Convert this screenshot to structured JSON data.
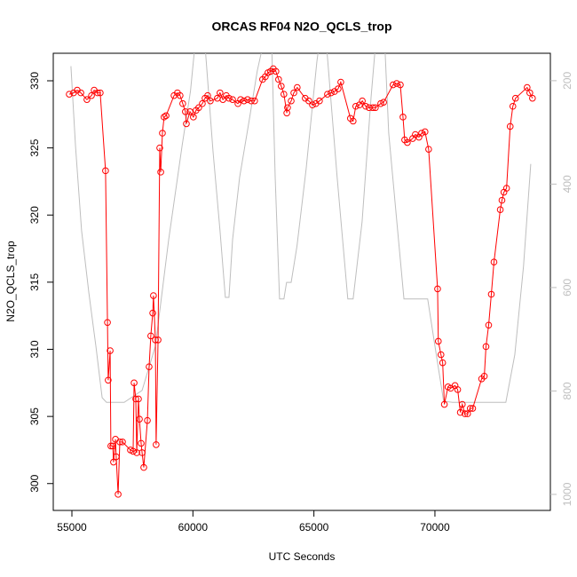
{
  "chart_data": {
    "type": "line",
    "title": "ORCAS RF04 N2O_QCLS_trop",
    "x_label": "UTC Seconds",
    "y_label": "N2O_QCLS_trop",
    "xlim": [
      54230,
      74770
    ],
    "xticks": [
      55000,
      60000,
      65000,
      70000
    ],
    "ylim": [
      298.0,
      332.05
    ],
    "yticks": [
      300,
      305,
      310,
      315,
      320,
      325,
      330
    ],
    "y2lim": [
      1031,
      147
    ],
    "y2ticks": [
      200,
      400,
      600,
      800,
      1000
    ],
    "y2color": "#bebebe",
    "series": [
      {
        "color": "#ff0000",
        "markers": true,
        "x": [
          54890,
          55070,
          55220,
          55370,
          55620,
          55810,
          55920,
          56060,
          56170,
          56390,
          56470,
          56500,
          56580,
          56610,
          56690,
          56720,
          56800,
          56830,
          56910,
          56980,
          57090,
          57420,
          57530,
          57570,
          57640,
          57680,
          57750,
          57790,
          57860,
          57900,
          57970,
          58120,
          58190,
          58260,
          58340,
          58370,
          58450,
          58480,
          58560,
          58630,
          58670,
          58740,
          58810,
          58890,
          59220,
          59360,
          59470,
          59580,
          59690,
          59730,
          59880,
          60020,
          60130,
          60240,
          60390,
          60500,
          60610,
          60720,
          61010,
          61120,
          61240,
          61380,
          61490,
          61640,
          61860,
          61970,
          62110,
          62260,
          62410,
          62550,
          62880,
          62990,
          63100,
          63210,
          63320,
          63430,
          63540,
          63650,
          63760,
          63880,
          63910,
          64060,
          64170,
          64310,
          64640,
          64790,
          64940,
          65080,
          65230,
          65560,
          65710,
          65850,
          66000,
          66110,
          66510,
          66620,
          66730,
          66880,
          67000,
          67140,
          67280,
          67430,
          67540,
          67760,
          67880,
          68270,
          68420,
          68570,
          68680,
          68750,
          68860,
          69080,
          69190,
          69340,
          69450,
          69590,
          69740,
          70110,
          70140,
          70250,
          70320,
          70390,
          70540,
          70650,
          70830,
          70940,
          71050,
          71130,
          71240,
          71350,
          71460,
          71560,
          71930,
          72040,
          72110,
          72220,
          72330,
          72440,
          72700,
          72770,
          72850,
          72960,
          73110,
          73220,
          73330,
          73810,
          73920,
          74030
        ],
        "values": [
          329.0,
          329.1,
          329.3,
          329.1,
          328.6,
          328.9,
          329.3,
          329.1,
          329.1,
          323.3,
          312.0,
          307.7,
          309.9,
          302.8,
          302.8,
          301.6,
          303.3,
          302.0,
          299.2,
          303.1,
          303.1,
          302.5,
          302.4,
          307.5,
          306.3,
          302.3,
          306.3,
          304.8,
          303.0,
          302.3,
          301.2,
          304.7,
          308.7,
          311.0,
          312.7,
          314.0,
          310.7,
          302.9,
          310.7,
          325.0,
          323.2,
          326.1,
          327.3,
          327.4,
          328.9,
          329.1,
          328.9,
          328.3,
          327.7,
          326.8,
          327.7,
          327.3,
          327.8,
          328.0,
          328.3,
          328.7,
          328.9,
          328.5,
          328.7,
          329.1,
          328.6,
          328.9,
          328.7,
          328.6,
          328.3,
          328.6,
          328.5,
          328.6,
          328.5,
          328.5,
          330.1,
          330.3,
          330.6,
          330.7,
          330.9,
          330.7,
          330.1,
          329.6,
          329.0,
          327.6,
          328.0,
          328.5,
          329.1,
          329.5,
          328.7,
          328.5,
          328.2,
          328.3,
          328.5,
          329.0,
          329.1,
          329.2,
          329.4,
          329.9,
          327.2,
          327.0,
          328.1,
          328.2,
          328.5,
          328.1,
          328.0,
          328.0,
          328.0,
          328.3,
          328.4,
          329.7,
          329.8,
          329.7,
          327.3,
          325.6,
          325.4,
          325.7,
          326.0,
          325.8,
          326.1,
          326.2,
          324.9,
          314.5,
          310.6,
          309.6,
          309.0,
          305.9,
          307.2,
          307.1,
          307.3,
          307.0,
          305.3,
          305.9,
          305.2,
          305.2,
          305.6,
          305.6,
          307.8,
          308.0,
          310.2,
          311.8,
          314.1,
          316.5,
          320.4,
          321.1,
          321.7,
          322.0,
          326.6,
          328.1,
          328.7,
          329.5,
          329.1,
          328.7
        ]
      },
      {
        "color": "#bebebe",
        "axis": "y2",
        "markers": false,
        "x": [
          54960,
          55150,
          55400,
          55700,
          55990,
          56250,
          56430,
          57160,
          57900,
          58450,
          59000,
          59550,
          59900,
          60150,
          60450,
          60830,
          61120,
          61340,
          61490,
          61640,
          61930,
          62300,
          62660,
          62900,
          63050,
          63250,
          63400,
          63580,
          63760,
          63870,
          64060,
          64300,
          64680,
          65120,
          65300,
          65500,
          65960,
          66400,
          66620,
          66990,
          67360,
          67600,
          67900,
          68090,
          68460,
          68720,
          69700,
          70000,
          70360,
          70730,
          72930,
          73300,
          73660,
          73960
        ],
        "values": [
          172,
          327,
          490,
          610,
          713,
          813,
          822,
          822,
          799,
          713,
          507,
          327,
          220,
          100,
          100,
          336,
          490,
          619,
          619,
          507,
          387,
          284,
          181,
          130,
          100,
          120,
          387,
          622,
          622,
          590,
          590,
          520,
          370,
          164,
          100,
          120,
          387,
          622,
          622,
          473,
          233,
          100,
          100,
          301,
          490,
          622,
          622,
          713,
          820,
          822,
          822,
          730,
          559,
          361
        ]
      }
    ]
  }
}
